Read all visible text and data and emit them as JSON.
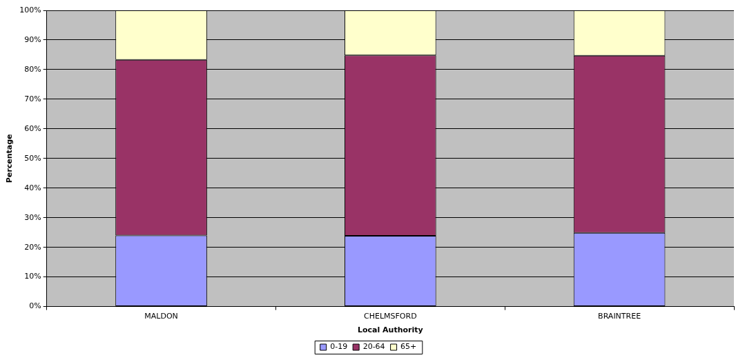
{
  "chart_data": {
    "type": "bar",
    "stacked": true,
    "xlabel": "Local Authority",
    "ylabel": "Percentage",
    "categories": [
      "MALDON",
      "CHELMSFORD",
      "BRAINTREE"
    ],
    "series": [
      {
        "name": "0-19",
        "color": "#9999ff",
        "values": [
          24.0,
          23.9,
          24.9
        ]
      },
      {
        "name": "20-64",
        "color": "#993366",
        "values": [
          59.3,
          60.9,
          59.8
        ]
      },
      {
        "name": "65+",
        "color": "#ffffcc",
        "values": [
          16.7,
          15.2,
          15.3
        ]
      }
    ],
    "ylim": [
      0,
      100
    ],
    "yticks": [
      {
        "value": 0,
        "label": "0%"
      },
      {
        "value": 10,
        "label": "10%"
      },
      {
        "value": 20,
        "label": "20%"
      },
      {
        "value": 30,
        "label": "30%"
      },
      {
        "value": 40,
        "label": "40%"
      },
      {
        "value": 50,
        "label": "50%"
      },
      {
        "value": 60,
        "label": "60%"
      },
      {
        "value": 70,
        "label": "70%"
      },
      {
        "value": 80,
        "label": "80%"
      },
      {
        "value": 90,
        "label": "90%"
      },
      {
        "value": 100,
        "label": "100%"
      }
    ],
    "grid": "y",
    "legend": "bottom"
  }
}
